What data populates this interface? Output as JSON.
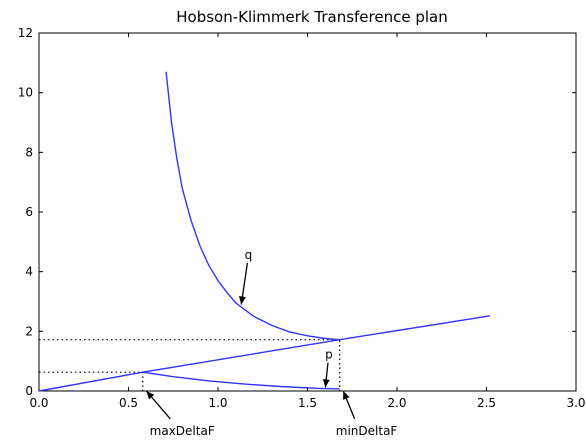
{
  "chart_data": {
    "type": "line",
    "title": "Hobson-Klimmerk Transference plan",
    "xlim": [
      0.0,
      3.0
    ],
    "ylim": [
      0,
      12
    ],
    "xticks": [
      "0.0",
      "0.5",
      "1.0",
      "1.5",
      "2.0",
      "2.5",
      "3.0"
    ],
    "yticks": [
      "0",
      "2",
      "4",
      "6",
      "8",
      "10",
      "12"
    ],
    "grid": false,
    "series": [
      {
        "name": "q",
        "color": "#3333ff",
        "points": [
          [
            0.71,
            10.7
          ],
          [
            0.74,
            9.0
          ],
          [
            0.77,
            7.8
          ],
          [
            0.8,
            6.8
          ],
          [
            0.85,
            5.7
          ],
          [
            0.9,
            4.85
          ],
          [
            0.95,
            4.2
          ],
          [
            1.0,
            3.7
          ],
          [
            1.05,
            3.3
          ],
          [
            1.1,
            2.95
          ],
          [
            1.2,
            2.5
          ],
          [
            1.3,
            2.2
          ],
          [
            1.4,
            1.98
          ],
          [
            1.5,
            1.85
          ],
          [
            1.6,
            1.76
          ],
          [
            1.68,
            1.72
          ]
        ]
      },
      {
        "name": "",
        "color": "#3333ff",
        "points": [
          [
            0.0,
            0.0
          ],
          [
            0.58,
            0.63
          ],
          [
            1.68,
            1.72
          ],
          [
            2.52,
            2.52
          ]
        ]
      },
      {
        "name": "p",
        "color": "#3333ff",
        "points": [
          [
            0.58,
            0.63
          ],
          [
            0.75,
            0.48
          ],
          [
            0.95,
            0.34
          ],
          [
            1.15,
            0.23
          ],
          [
            1.35,
            0.15
          ],
          [
            1.55,
            0.09
          ],
          [
            1.68,
            0.07
          ]
        ]
      }
    ],
    "reference_lines": [
      {
        "points": [
          [
            0.0,
            1.72
          ],
          [
            1.68,
            1.72
          ],
          [
            1.68,
            0.0
          ]
        ],
        "style": "dotted"
      },
      {
        "points": [
          [
            0.0,
            0.63
          ],
          [
            0.58,
            0.63
          ],
          [
            0.58,
            0.0
          ]
        ],
        "style": "dotted"
      }
    ],
    "annotations": [
      {
        "text": "q",
        "text_at": [
          1.17,
          4.5
        ],
        "arrow_to": [
          1.13,
          2.9
        ]
      },
      {
        "text": "p",
        "text_at": [
          1.62,
          1.15
        ],
        "arrow_to": [
          1.6,
          0.12
        ]
      },
      {
        "text": "maxDeltaF",
        "text_at": [
          0.8,
          -1.4
        ],
        "arrow_to": [
          0.6,
          0.0
        ]
      },
      {
        "text": "minDeltaF",
        "text_at": [
          1.83,
          -1.4
        ],
        "arrow_to": [
          1.7,
          0.0
        ]
      }
    ]
  }
}
